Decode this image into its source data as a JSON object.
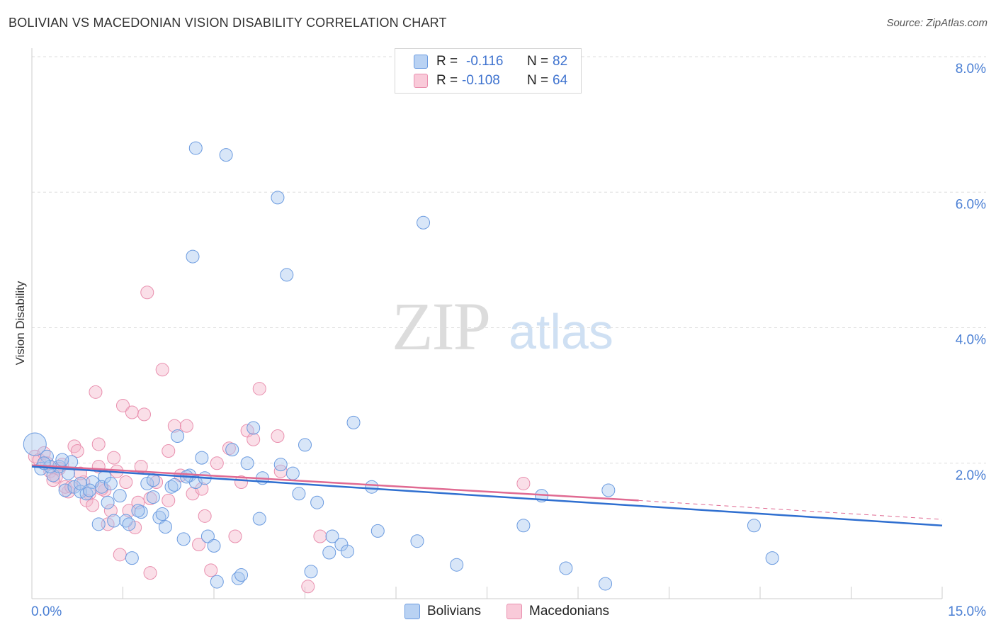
{
  "header": {
    "title": "BOLIVIAN VS MACEDONIAN VISION DISABILITY CORRELATION CHART",
    "source": "Source: ZipAtlas.com"
  },
  "watermark": {
    "zip": "ZIP",
    "atlas": "atlas"
  },
  "legend": {
    "rows": [
      {
        "r_label": "R =",
        "r_value": "-0.116",
        "n_label": "N =",
        "n_value": "82"
      },
      {
        "r_label": "R =",
        "r_value": "-0.108",
        "n_label": "N =",
        "n_value": "64"
      }
    ]
  },
  "bottom_legend": {
    "bolivians": "Bolivians",
    "macedonians": "Macedonians"
  },
  "colors": {
    "bolivians_fill": "#a9c8f0",
    "bolivians_stroke": "#6b9be0",
    "bolivians_line": "#2f6fd0",
    "macedonians_fill": "#f5b8cc",
    "macedonians_stroke": "#e98fae",
    "macedonians_line": "#e06a92",
    "grid": "#dedede",
    "tick_text": "#4a7fd4"
  },
  "chart_data": {
    "type": "scatter",
    "title": "BOLIVIAN VS MACEDONIAN VISION DISABILITY CORRELATION CHART",
    "xlabel": "",
    "ylabel": "Vision Disability",
    "xlim": [
      0,
      15
    ],
    "ylim": [
      0,
      8
    ],
    "x_tick_labels": [
      "0.0%",
      "15.0%"
    ],
    "y_ticks": [
      2,
      4,
      6,
      8
    ],
    "y_tick_labels": [
      "2.0%",
      "4.0%",
      "6.0%",
      "8.0%"
    ],
    "grid": true,
    "legend_position": "top-center",
    "series": [
      {
        "name": "Bolivians",
        "r": -0.116,
        "n": 82,
        "trend": {
          "x": [
            0,
            15
          ],
          "y": [
            1.95,
            1.08
          ]
        },
        "points": [
          [
            0.05,
            2.28
          ],
          [
            0.15,
            1.92
          ],
          [
            0.25,
            2.1
          ],
          [
            0.35,
            1.82
          ],
          [
            0.45,
            1.95
          ],
          [
            0.55,
            1.6
          ],
          [
            0.65,
            2.02
          ],
          [
            0.7,
            1.65
          ],
          [
            0.8,
            1.58
          ],
          [
            0.9,
            1.55
          ],
          [
            1.0,
            1.72
          ],
          [
            1.1,
            1.1
          ],
          [
            1.2,
            1.8
          ],
          [
            1.25,
            1.42
          ],
          [
            1.35,
            1.15
          ],
          [
            1.45,
            1.52
          ],
          [
            1.55,
            1.15
          ],
          [
            1.65,
            0.6
          ],
          [
            1.8,
            1.28
          ],
          [
            1.9,
            1.7
          ],
          [
            2.0,
            1.75
          ],
          [
            2.1,
            1.2
          ],
          [
            2.2,
            1.06
          ],
          [
            2.3,
            1.65
          ],
          [
            2.4,
            2.4
          ],
          [
            2.5,
            0.88
          ],
          [
            2.6,
            1.82
          ],
          [
            2.7,
            6.65
          ],
          [
            2.8,
            2.08
          ],
          [
            2.9,
            0.92
          ],
          [
            3.0,
            0.78
          ],
          [
            3.2,
            6.55
          ],
          [
            3.3,
            2.2
          ],
          [
            3.4,
            0.3
          ],
          [
            3.55,
            2.0
          ],
          [
            3.65,
            2.52
          ],
          [
            3.75,
            1.18
          ],
          [
            4.1,
            1.98
          ],
          [
            4.2,
            4.78
          ],
          [
            4.3,
            1.85
          ],
          [
            4.5,
            2.27
          ],
          [
            4.6,
            0.4
          ],
          [
            4.95,
            0.92
          ],
          [
            5.1,
            0.8
          ],
          [
            5.3,
            2.6
          ],
          [
            5.7,
            1.0
          ],
          [
            6.35,
            0.85
          ],
          [
            7.0,
            0.5
          ],
          [
            8.1,
            1.08
          ],
          [
            8.4,
            1.52
          ],
          [
            8.8,
            0.45
          ],
          [
            9.5,
            1.6
          ],
          [
            11.9,
            1.08
          ],
          [
            12.2,
            0.6
          ],
          [
            0.3,
            1.95
          ],
          [
            0.6,
            1.85
          ],
          [
            0.95,
            1.6
          ],
          [
            1.15,
            1.65
          ],
          [
            1.6,
            1.1
          ],
          [
            2.0,
            1.5
          ],
          [
            2.35,
            1.68
          ],
          [
            2.7,
            1.72
          ],
          [
            3.05,
            0.25
          ],
          [
            3.45,
            0.35
          ],
          [
            4.4,
            1.55
          ],
          [
            4.9,
            0.68
          ],
          [
            5.2,
            0.7
          ],
          [
            6.45,
            5.55
          ],
          [
            4.05,
            5.92
          ],
          [
            2.65,
            5.05
          ],
          [
            9.45,
            0.22
          ],
          [
            0.5,
            2.05
          ],
          [
            0.8,
            1.7
          ],
          [
            1.3,
            1.7
          ],
          [
            1.75,
            1.3
          ],
          [
            2.15,
            1.25
          ],
          [
            2.55,
            1.8
          ],
          [
            2.85,
            1.78
          ],
          [
            3.8,
            1.78
          ],
          [
            4.7,
            1.42
          ],
          [
            5.6,
            1.65
          ],
          [
            0.2,
            2.0
          ]
        ]
      },
      {
        "name": "Macedonians",
        "r": -0.108,
        "n": 64,
        "trend": {
          "x": [
            0,
            10
          ],
          "y": [
            1.97,
            1.45
          ],
          "dashed_to": [
            15,
            1.17
          ]
        },
        "points": [
          [
            0.05,
            2.1
          ],
          [
            0.12,
            2.05
          ],
          [
            0.2,
            2.15
          ],
          [
            0.3,
            1.88
          ],
          [
            0.4,
            1.8
          ],
          [
            0.5,
            1.98
          ],
          [
            0.6,
            1.58
          ],
          [
            0.7,
            2.25
          ],
          [
            0.75,
            2.18
          ],
          [
            0.85,
            1.72
          ],
          [
            0.95,
            1.55
          ],
          [
            1.05,
            3.05
          ],
          [
            1.1,
            2.28
          ],
          [
            1.2,
            1.6
          ],
          [
            1.3,
            1.3
          ],
          [
            1.35,
            2.08
          ],
          [
            1.45,
            0.65
          ],
          [
            1.5,
            2.85
          ],
          [
            1.6,
            1.3
          ],
          [
            1.65,
            2.75
          ],
          [
            1.7,
            1.05
          ],
          [
            1.8,
            1.95
          ],
          [
            1.85,
            2.72
          ],
          [
            1.9,
            4.52
          ],
          [
            1.95,
            0.38
          ],
          [
            2.05,
            1.72
          ],
          [
            2.15,
            3.38
          ],
          [
            2.25,
            2.18
          ],
          [
            2.35,
            2.55
          ],
          [
            2.45,
            1.82
          ],
          [
            2.55,
            2.55
          ],
          [
            2.65,
            1.55
          ],
          [
            2.75,
            0.8
          ],
          [
            2.85,
            1.22
          ],
          [
            2.95,
            0.42
          ],
          [
            3.05,
            2.0
          ],
          [
            3.25,
            2.22
          ],
          [
            3.35,
            0.92
          ],
          [
            3.45,
            1.72
          ],
          [
            3.55,
            2.48
          ],
          [
            3.65,
            2.35
          ],
          [
            3.75,
            3.1
          ],
          [
            4.05,
            2.4
          ],
          [
            4.1,
            1.88
          ],
          [
            4.55,
            0.18
          ],
          [
            4.75,
            0.92
          ],
          [
            8.1,
            1.7
          ],
          [
            0.55,
            1.65
          ],
          [
            0.9,
            1.45
          ],
          [
            1.15,
            1.62
          ],
          [
            1.25,
            1.1
          ],
          [
            1.55,
            1.72
          ],
          [
            1.75,
            1.42
          ],
          [
            2.25,
            1.45
          ],
          [
            2.8,
            1.62
          ],
          [
            0.35,
            1.75
          ],
          [
            0.65,
            1.65
          ],
          [
            1.0,
            1.38
          ],
          [
            1.4,
            1.88
          ],
          [
            1.95,
            1.48
          ],
          [
            0.25,
            2.0
          ],
          [
            0.45,
            1.92
          ],
          [
            0.8,
            1.85
          ],
          [
            1.1,
            1.95
          ]
        ]
      }
    ]
  }
}
